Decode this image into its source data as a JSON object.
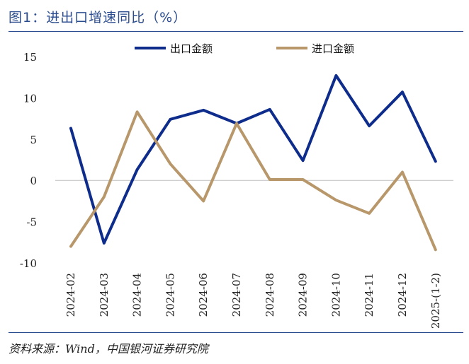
{
  "header": {
    "title": "图1：进出口增速同比（%）"
  },
  "footer": {
    "source": "资料来源：Wind，中国银河证券研究院"
  },
  "colors": {
    "export": "#0d2c8c",
    "import": "#b8976a",
    "rule": "#2a4b8d",
    "axis": "#bfbfbf"
  },
  "chart_data": {
    "type": "line",
    "title": "图1：进出口增速同比（%）",
    "xlabel": "",
    "ylabel": "",
    "ylim": [
      -10,
      15
    ],
    "yticks": [
      15,
      10,
      5,
      0,
      -5,
      -10
    ],
    "categories": [
      "2024-02",
      "2024-03",
      "2024-04",
      "2024-05",
      "2024-06",
      "2024-07",
      "2024-08",
      "2024-09",
      "2024-10",
      "2024-11",
      "2024-12",
      "2025-(1-2)"
    ],
    "legend_position": "top",
    "series": [
      {
        "name": "出口金额",
        "values": [
          6.3,
          -7.6,
          1.3,
          7.4,
          8.5,
          6.9,
          8.6,
          2.4,
          12.7,
          6.6,
          10.7,
          2.3
        ]
      },
      {
        "name": "进口金额",
        "values": [
          -8.0,
          -2.0,
          8.3,
          2.0,
          -2.5,
          6.9,
          0.1,
          0.1,
          -2.4,
          -4.0,
          1.0,
          -8.4
        ]
      }
    ]
  }
}
